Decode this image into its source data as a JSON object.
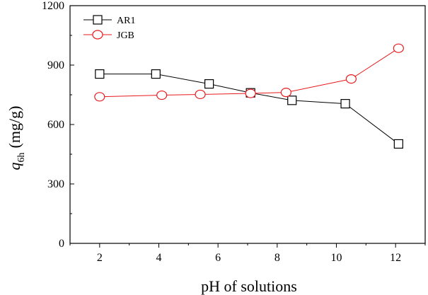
{
  "chart_data": {
    "type": "line",
    "xlabel": "pH of solutions",
    "ylabel": {
      "main": "q",
      "subscript": "6h",
      "unit": "(mg/g)"
    },
    "xlim": [
      1,
      13
    ],
    "ylim": [
      0,
      1200
    ],
    "x_ticks": [
      2,
      4,
      6,
      8,
      10,
      12
    ],
    "y_ticks": [
      0,
      300,
      600,
      900,
      1200
    ],
    "grid": false,
    "legend_position": "top-left",
    "series": [
      {
        "name": "AR1",
        "color": "#000000",
        "marker": "square",
        "x": [
          2.0,
          3.9,
          5.7,
          7.1,
          8.5,
          10.3,
          12.1
        ],
        "y": [
          855,
          855,
          805,
          760,
          722,
          705,
          502
        ]
      },
      {
        "name": "JGB",
        "color": "#e8191c",
        "marker": "circle",
        "x": [
          2.0,
          4.1,
          5.4,
          7.1,
          8.3,
          10.5,
          12.1
        ],
        "y": [
          740,
          748,
          752,
          757,
          762,
          830,
          985
        ]
      }
    ]
  }
}
